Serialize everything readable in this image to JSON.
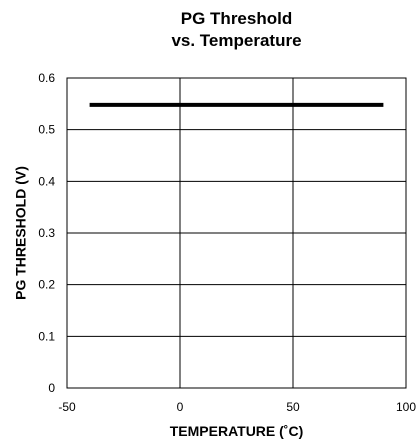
{
  "chart_data": {
    "type": "line",
    "title_lines": [
      "PG Threshold",
      "vs. Temperature"
    ],
    "xlabel": "TEMPERATURE (˚C)",
    "ylabel": "PG THRESHOLD (V)",
    "xlim": [
      -50,
      100
    ],
    "ylim": [
      0,
      0.6
    ],
    "x_ticks": [
      -50,
      0,
      50,
      100
    ],
    "x_tick_labels": [
      "-50",
      "0",
      "50",
      "100"
    ],
    "y_ticks": [
      0,
      0.1,
      0.2,
      0.3,
      0.4,
      0.5,
      0.6
    ],
    "y_tick_labels": [
      "0",
      "0.1",
      "0.2",
      "0.3",
      "0.4",
      "0.5",
      "0.6"
    ],
    "grid": true,
    "legend": false,
    "series": [
      {
        "x": [
          -40,
          90
        ],
        "y": [
          0.548,
          0.548
        ],
        "color": "#000000"
      }
    ]
  }
}
